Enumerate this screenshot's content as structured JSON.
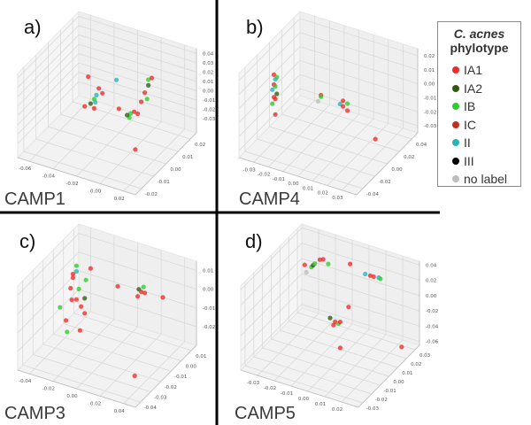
{
  "legend": {
    "title_species": "C. acnes",
    "title_suffix": "phylotype",
    "entries": [
      {
        "name": "IA1",
        "color": "#ee2a2a"
      },
      {
        "name": "IA2",
        "color": "#2f5a10"
      },
      {
        "name": "IB",
        "color": "#2ecc2e"
      },
      {
        "name": "IC",
        "color": "#c0301a"
      },
      {
        "name": "II",
        "color": "#26b3b8"
      },
      {
        "name": "III",
        "color": "#000000"
      },
      {
        "name": "no label",
        "color": "#bdbdbd"
      }
    ]
  },
  "chart_data": [
    {
      "type": "scatter3d",
      "panel_label": "a)",
      "title": "CAMP1",
      "xlim": [
        -0.07,
        0.03
      ],
      "ylim": [
        -0.025,
        0.025
      ],
      "zlim": [
        -0.045,
        0.045
      ],
      "xticks": [
        "-0.06",
        "-0.04",
        "-0.02",
        "0.00",
        "0.02"
      ],
      "yticks": [
        "-0.02",
        "-0.01",
        "0.00",
        "0.01",
        "0.02"
      ],
      "zticks": [
        "-0.03",
        "-0.02",
        "-0.01",
        "0.00",
        "0.01",
        "0.02",
        "0.03",
        "0.04"
      ],
      "grid": true,
      "points": [
        [
          -0.036,
          0,
          0.022,
          "IA1"
        ],
        [
          -0.012,
          0,
          0.028,
          "II"
        ],
        [
          -0.027,
          0,
          0.013,
          "IA1"
        ],
        [
          -0.024,
          0,
          0.009,
          "IA1"
        ],
        [
          -0.029,
          0,
          0.005,
          "II"
        ],
        [
          -0.031,
          0,
          0.0,
          "IB"
        ],
        [
          -0.034,
          0,
          -0.006,
          "IA2"
        ],
        [
          -0.039,
          0,
          -0.011,
          "IA1"
        ],
        [
          -0.031,
          0,
          -0.01,
          "IA1"
        ],
        [
          -0.03,
          0,
          -0.003,
          "II"
        ],
        [
          0.015,
          0,
          0.039,
          "IB"
        ],
        [
          0.018,
          0,
          0.042,
          "IA1"
        ],
        [
          0.015,
          0,
          0.033,
          "IA2"
        ],
        [
          0.012,
          0,
          0.024,
          "IA1"
        ],
        [
          0.014,
          0,
          0.018,
          "IB"
        ],
        [
          0.009,
          0,
          0.013,
          "IA1"
        ],
        [
          -0.01,
          0,
          -0.002,
          "IA1"
        ],
        [
          0.0,
          0,
          -0.003,
          "IB"
        ],
        [
          0.003,
          0,
          0.0,
          "IA1"
        ],
        [
          -0.001,
          0,
          -0.008,
          "IB"
        ],
        [
          0.006,
          0,
          -0.001,
          "IA1"
        ],
        [
          -0.003,
          0,
          -0.006,
          "IA2"
        ],
        [
          0.004,
          0,
          -0.04,
          "IA1"
        ]
      ]
    },
    {
      "type": "scatter3d",
      "panel_label": "b)",
      "title": "CAMP4",
      "xlim": [
        -0.04,
        0.04
      ],
      "ylim": [
        -0.05,
        0.05
      ],
      "zlim": [
        -0.035,
        0.025
      ],
      "xticks": [
        "-0.03",
        "-0.02",
        "-0.01",
        "0.00",
        "0.01",
        "0.02",
        "0.03"
      ],
      "yticks": [
        "-0.04",
        "-0.02",
        "0.00",
        "0.02",
        "0.04"
      ],
      "zticks": [
        "-0.03",
        "-0.02",
        "-0.01",
        "0.00",
        "0.01",
        "0.02"
      ],
      "grid": true,
      "points": [
        [
          -0.037,
          0,
          0.003,
          "IA1"
        ],
        [
          -0.035,
          0,
          0.002,
          "IB"
        ],
        [
          -0.036,
          0,
          0.0,
          "II"
        ],
        [
          -0.037,
          0,
          -0.004,
          "IA1"
        ],
        [
          -0.036,
          0,
          -0.005,
          "IB"
        ],
        [
          -0.038,
          0,
          -0.008,
          "II"
        ],
        [
          -0.035,
          0,
          -0.01,
          "IA2"
        ],
        [
          -0.037,
          0,
          -0.013,
          "IA1"
        ],
        [
          -0.036,
          0,
          -0.014,
          "IA1"
        ],
        [
          -0.038,
          0,
          -0.018,
          "IB"
        ],
        [
          -0.036,
          0,
          -0.025,
          "IA1"
        ],
        [
          -0.005,
          0,
          -0.001,
          "IA1"
        ],
        [
          -0.005,
          0,
          -0.002,
          "IB"
        ],
        [
          -0.007,
          0,
          -0.006,
          "no label"
        ],
        [
          0.01,
          0,
          0.0,
          "IA1"
        ],
        [
          0.008,
          0,
          -0.003,
          "II"
        ],
        [
          0.013,
          0,
          -0.001,
          "IB"
        ],
        [
          0.01,
          0,
          -0.004,
          "IA1"
        ],
        [
          0.013,
          0,
          -0.006,
          "IA1"
        ],
        [
          0.032,
          0,
          -0.02,
          "IA1"
        ]
      ]
    },
    {
      "type": "scatter3d",
      "panel_label": "c)",
      "title": "CAMP3",
      "xlim": [
        -0.05,
        0.05
      ],
      "ylim": [
        -0.045,
        0.015
      ],
      "zlim": [
        -0.03,
        0.015
      ],
      "xticks": [
        "-0.04",
        "-0.02",
        "0.00",
        "0.02",
        "0.04"
      ],
      "yticks": [
        "-0.04",
        "-0.03",
        "-0.02",
        "-0.01",
        "0.00",
        "0.01"
      ],
      "zticks": [
        "-0.02",
        "-0.01",
        "0.00",
        "0.01"
      ],
      "grid": true,
      "points": [
        [
          -0.026,
          -0.015,
          0.014,
          "IB"
        ],
        [
          -0.026,
          -0.015,
          0.011,
          "II"
        ],
        [
          -0.029,
          -0.015,
          0.009,
          "IA1"
        ],
        [
          -0.029,
          -0.015,
          0.007,
          "IA1"
        ],
        [
          -0.014,
          -0.015,
          0.015,
          "IA1"
        ],
        [
          -0.018,
          -0.015,
          0.008,
          "IB"
        ],
        [
          -0.031,
          -0.015,
          0.001,
          "IA1"
        ],
        [
          -0.024,
          -0.015,
          0.002,
          "IB"
        ],
        [
          -0.03,
          -0.015,
          -0.005,
          "IA1"
        ],
        [
          -0.026,
          -0.015,
          -0.004,
          "IA1"
        ],
        [
          -0.019,
          -0.015,
          -0.002,
          "IA2"
        ],
        [
          -0.04,
          -0.015,
          -0.011,
          "IB"
        ],
        [
          -0.022,
          -0.015,
          -0.007,
          "IA1"
        ],
        [
          -0.019,
          -0.015,
          -0.01,
          "IA1"
        ],
        [
          -0.035,
          -0.015,
          -0.017,
          "IA1"
        ],
        [
          -0.034,
          -0.015,
          -0.023,
          "IB"
        ],
        [
          -0.023,
          -0.015,
          -0.02,
          "IA1"
        ],
        [
          0.009,
          -0.015,
          0.01,
          "IA1"
        ],
        [
          0.027,
          -0.015,
          0.012,
          "IA2"
        ],
        [
          0.031,
          -0.015,
          0.014,
          "IB"
        ],
        [
          0.029,
          -0.015,
          0.011,
          "IA1"
        ],
        [
          0.026,
          -0.015,
          0.008,
          "IA1"
        ],
        [
          0.032,
          -0.015,
          0.011,
          "IA1"
        ],
        [
          0.037,
          -0.003,
          0.003,
          "IA1"
        ],
        [
          0.039,
          -0.033,
          -0.022,
          "IA1"
        ]
      ]
    },
    {
      "type": "scatter3d",
      "panel_label": "d)",
      "title": "CAMP5",
      "xlim": [
        -0.04,
        0.03
      ],
      "ylim": [
        -0.035,
        0.035
      ],
      "zlim": [
        -0.065,
        0.045
      ],
      "xticks": [
        "-0.03",
        "-0.02",
        "-0.01",
        "0.00",
        "0.01",
        "0.02"
      ],
      "yticks": [
        "-0.03",
        "-0.02",
        "-0.01",
        "0.00",
        "0.01",
        "0.02",
        "0.03"
      ],
      "zticks": [
        "-0.06",
        "-0.04",
        "-0.02",
        "0.00",
        "0.02",
        "0.04"
      ],
      "grid": true,
      "points": [
        [
          -0.031,
          0.021,
          0.014,
          "IA1"
        ],
        [
          -0.03,
          0.021,
          0.005,
          "no label"
        ],
        [
          -0.027,
          0.021,
          0.014,
          "IB"
        ],
        [
          -0.026,
          0.021,
          0.017,
          "IA2"
        ],
        [
          -0.025,
          0.021,
          0.02,
          "IB"
        ],
        [
          -0.022,
          0.021,
          0.027,
          "IA1"
        ],
        [
          -0.02,
          0.021,
          0.029,
          "IA1"
        ],
        [
          -0.017,
          0.021,
          0.025,
          "IB"
        ],
        [
          -0.004,
          0.021,
          0.034,
          "IA1"
        ],
        [
          0.005,
          0.021,
          0.027,
          "II"
        ],
        [
          0.008,
          0.021,
          0.027,
          "IA1"
        ],
        [
          0.01,
          0.021,
          0.027,
          "IA1"
        ],
        [
          0.013,
          0.021,
          0.028,
          "II"
        ],
        [
          0.014,
          0.021,
          0.027,
          "IB"
        ],
        [
          0.006,
          0,
          0.009,
          "IA1"
        ],
        [
          -0.005,
          0,
          -0.013,
          "IA2"
        ],
        [
          -0.002,
          0,
          -0.016,
          "IA1"
        ],
        [
          0.0,
          0,
          -0.017,
          "IB"
        ],
        [
          -0.003,
          0,
          -0.021,
          "IA1"
        ],
        [
          0.001,
          0,
          -0.014,
          "IA1"
        ],
        [
          0.001,
          0,
          -0.048,
          "IA1"
        ],
        [
          0.023,
          0.028,
          -0.064,
          "IA1"
        ]
      ]
    }
  ]
}
